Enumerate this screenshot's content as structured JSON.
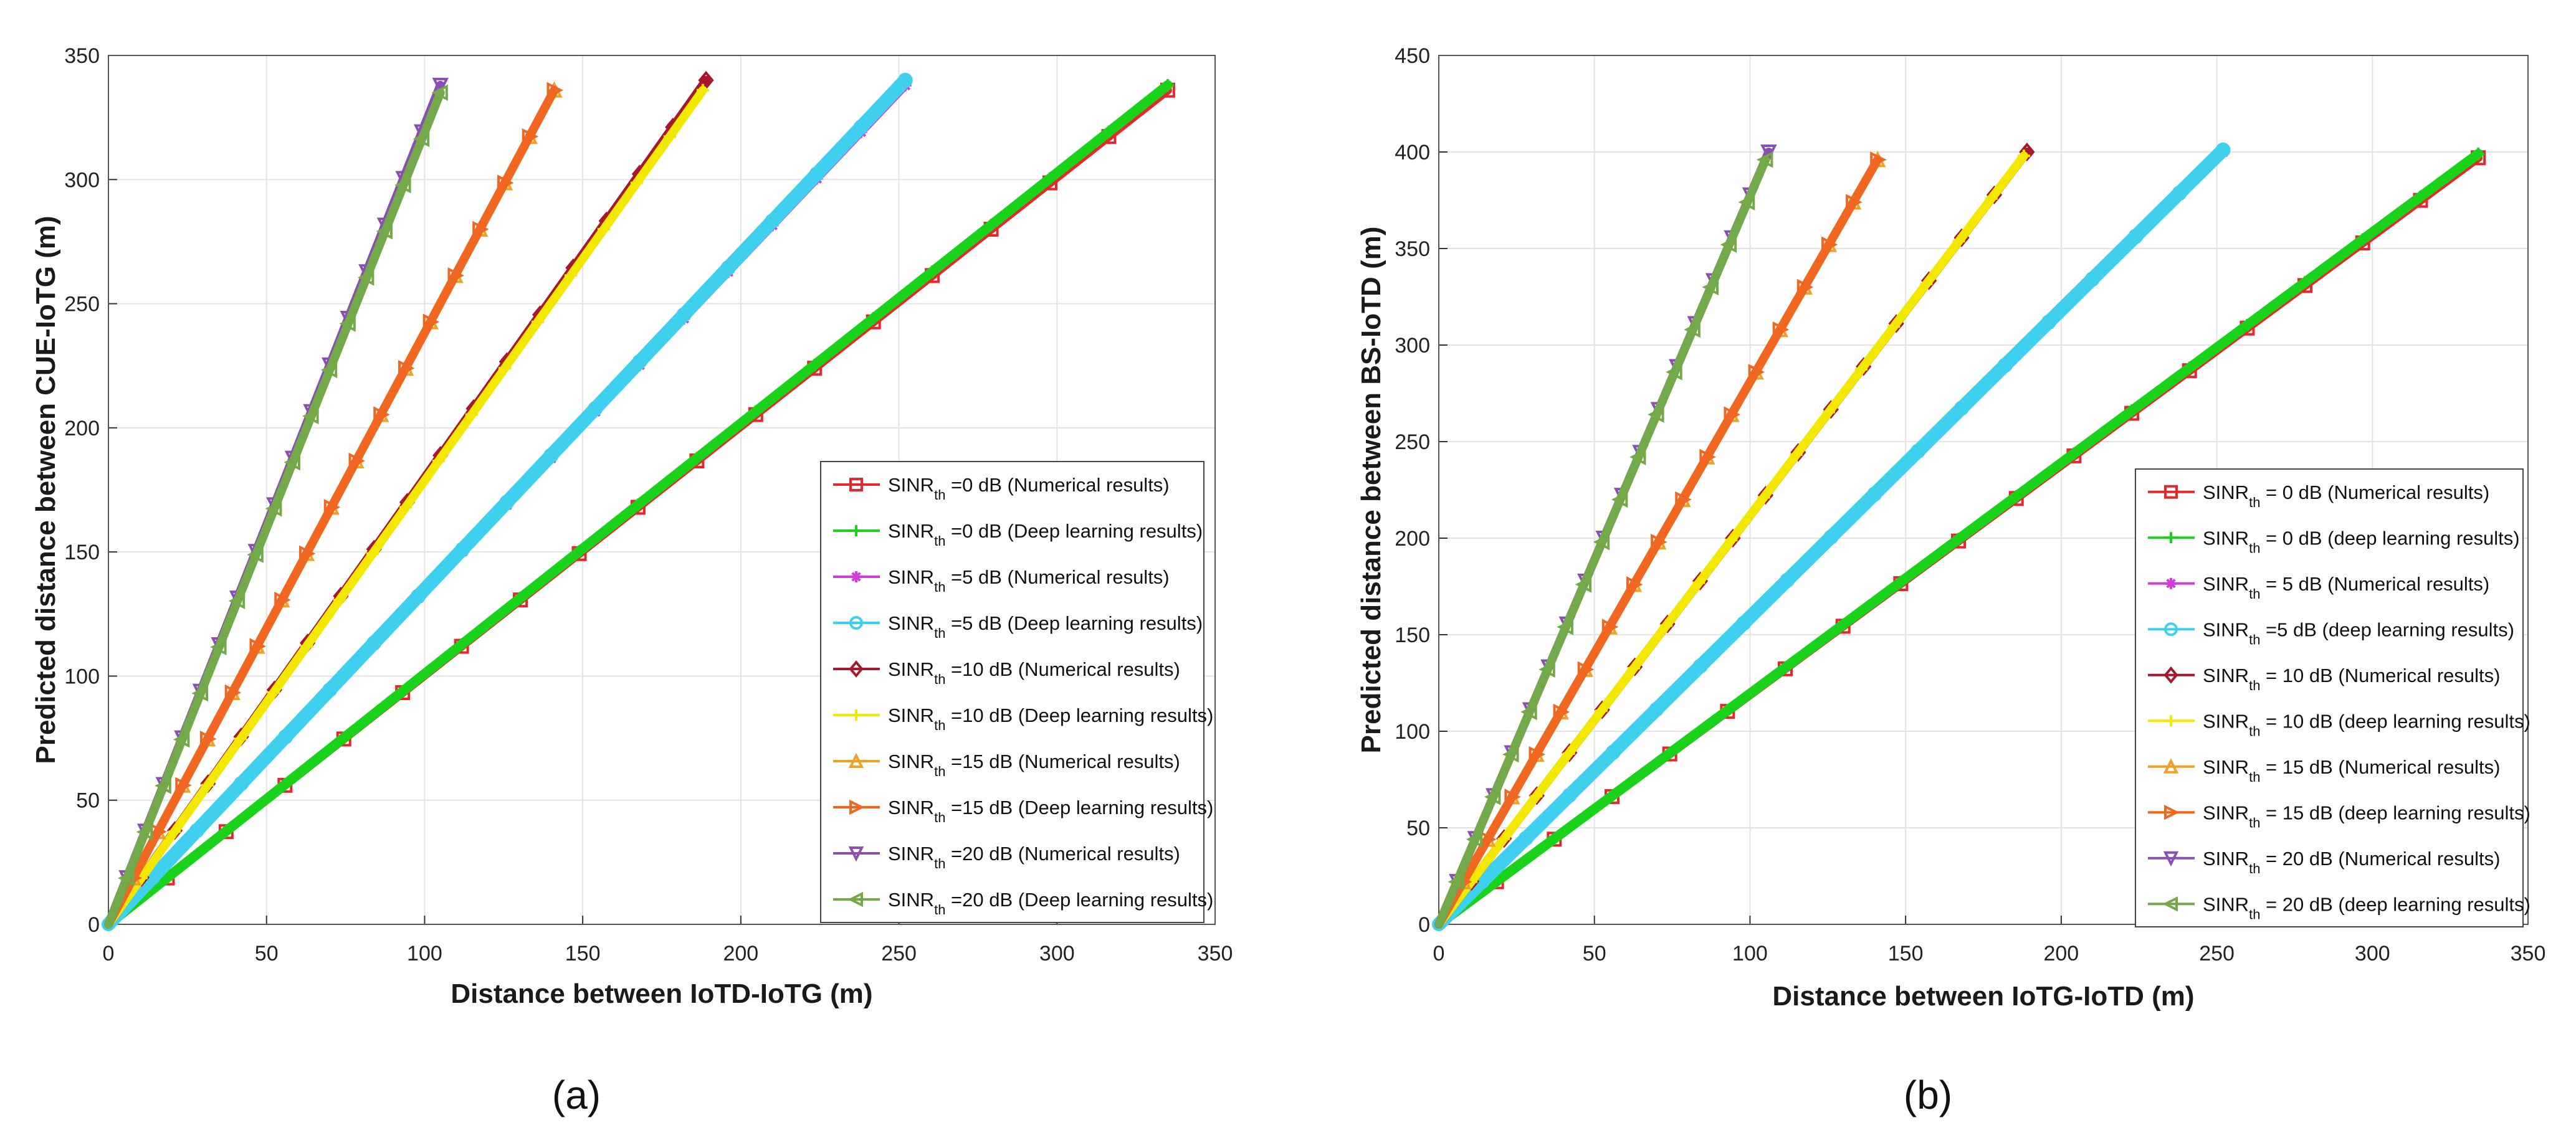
{
  "chart_data": [
    {
      "type": "line",
      "panel_label": "(a)",
      "xlabel": "Distance between IoTD-IoTG (m)",
      "ylabel": "Predicted distance between CUE-IoTG (m)",
      "xlim": [
        0,
        350
      ],
      "ylim": [
        0,
        350
      ],
      "xticks": [
        "0",
        "50",
        "100",
        "150",
        "200",
        "250",
        "300",
        "350"
      ],
      "yticks": [
        "0",
        "50",
        "100",
        "150",
        "200",
        "250",
        "300",
        "350"
      ],
      "grid": true,
      "legend_position": "bottom-right",
      "legend_items": [
        {
          "sub": "SINR",
          "subscript": "th",
          "rest": " =0 dB (Numerical results)"
        },
        {
          "sub": "SINR",
          "subscript": "th",
          "rest": " =0 dB (Deep learning results)"
        },
        {
          "sub": "SINR",
          "subscript": "th",
          "rest": " =5 dB (Numerical results)"
        },
        {
          "sub": "SINR",
          "subscript": "th",
          "rest": " =5 dB (Deep learning results)"
        },
        {
          "sub": "SINR",
          "subscript": "th",
          "rest": " =10 dB (Numerical results)"
        },
        {
          "sub": "SINR",
          "subscript": "th",
          "rest": " =10 dB (Deep learning results)"
        },
        {
          "sub": "SINR",
          "subscript": "th",
          "rest": " =15 dB (Numerical results)"
        },
        {
          "sub": "SINR",
          "subscript": "th",
          "rest": " =15 dB (Deep learning results)"
        },
        {
          "sub": "SINR",
          "subscript": "th",
          "rest": " =20 dB (Numerical results)"
        },
        {
          "sub": "SINR",
          "subscript": "th",
          "rest": " =20 dB (Deep learning results)"
        }
      ],
      "series": [
        {
          "name": "SINRth =0 dB (Numerical results)",
          "color": "#e8262c",
          "marker": "square",
          "x": [
            0,
            335
          ],
          "y": [
            0,
            336
          ]
        },
        {
          "name": "SINRth =0 dB (Deep learning results)",
          "color": "#19d31b",
          "marker": "plus",
          "x": [
            0,
            335
          ],
          "y": [
            0,
            338
          ]
        },
        {
          "name": "SINRth =5 dB (Numerical results)",
          "color": "#d23cd8",
          "marker": "star",
          "x": [
            0,
            252
          ],
          "y": [
            0,
            338
          ]
        },
        {
          "name": "SINRth =5 dB (Deep learning results)",
          "color": "#3fd0ef",
          "marker": "circle",
          "x": [
            0,
            252
          ],
          "y": [
            0,
            340
          ]
        },
        {
          "name": "SINRth =10 dB (Numerical results)",
          "color": "#a8182c",
          "marker": "diamond",
          "x": [
            0,
            189
          ],
          "y": [
            0,
            340
          ]
        },
        {
          "name": "SINRth =10 dB (Deep learning results)",
          "color": "#f2e800",
          "marker": "plus",
          "x": [
            0,
            188
          ],
          "y": [
            0,
            336
          ]
        },
        {
          "name": "SINRth =15 dB (Numerical results)",
          "color": "#f0a226",
          "marker": "triangle-up",
          "x": [
            0,
            141
          ],
          "y": [
            0,
            336
          ]
        },
        {
          "name": "SINRth =15 dB (Deep learning results)",
          "color": "#f06722",
          "marker": "triangle-right",
          "x": [
            0,
            141
          ],
          "y": [
            0,
            336
          ]
        },
        {
          "name": "SINRth =20 dB (Numerical results)",
          "color": "#8a4fb0",
          "marker": "triangle-down",
          "x": [
            0,
            105
          ],
          "y": [
            0,
            338
          ]
        },
        {
          "name": "SINRth =20 dB (Deep learning results)",
          "color": "#74a94a",
          "marker": "triangle-left",
          "x": [
            0,
            105
          ],
          "y": [
            0,
            335
          ]
        }
      ]
    },
    {
      "type": "line",
      "panel_label": "(b)",
      "xlabel": "Distance between IoTG-IoTD (m)",
      "ylabel": "Predicted distance between BS-IoTD (m)",
      "xlim": [
        0,
        350
      ],
      "ylim": [
        0,
        450
      ],
      "xticks": [
        "0",
        "50",
        "100",
        "150",
        "200",
        "250",
        "300",
        "350"
      ],
      "yticks": [
        "0",
        "50",
        "100",
        "150",
        "200",
        "250",
        "300",
        "350",
        "400",
        "450"
      ],
      "grid": true,
      "legend_position": "bottom-right",
      "legend_items": [
        {
          "sub": "SINR",
          "subscript": "th",
          "rest": " = 0 dB (Numerical results)"
        },
        {
          "sub": "SINR",
          "subscript": "th",
          "rest": " = 0 dB (deep learning results)"
        },
        {
          "sub": "SINR",
          "subscript": "th",
          "rest": " = 5 dB (Numerical results)"
        },
        {
          "sub": "SINR",
          "subscript": "th",
          "rest": " =5 dB (deep learning results)"
        },
        {
          "sub": "SINR",
          "subscript": "th",
          "rest": " = 10 dB (Numerical results)"
        },
        {
          "sub": "SINR",
          "subscript": "th",
          "rest": " = 10 dB (deep learning results)"
        },
        {
          "sub": "SINR",
          "subscript": "th",
          "rest": " = 15 dB (Numerical results)"
        },
        {
          "sub": "SINR",
          "subscript": "th",
          "rest": " = 15 dB (deep learning results)"
        },
        {
          "sub": "SINR",
          "subscript": "th",
          "rest": " = 20 dB (Numerical results)"
        },
        {
          "sub": "SINR",
          "subscript": "th",
          "rest": " = 20 dB (deep learning results)"
        }
      ],
      "series": [
        {
          "name": "SINRth = 0 dB (Numerical results)",
          "color": "#e8262c",
          "marker": "square",
          "x": [
            0,
            334
          ],
          "y": [
            0,
            397
          ]
        },
        {
          "name": "SINRth = 0 dB (deep learning results)",
          "color": "#19d31b",
          "marker": "plus",
          "x": [
            0,
            334
          ],
          "y": [
            0,
            399
          ]
        },
        {
          "name": "SINRth = 5 dB (Numerical results)",
          "color": "#d23cd8",
          "marker": "star",
          "x": [
            0,
            252
          ],
          "y": [
            0,
            400
          ]
        },
        {
          "name": "SINRth =5 dB (deep learning results)",
          "color": "#3fd0ef",
          "marker": "circle",
          "x": [
            0,
            252
          ],
          "y": [
            0,
            401
          ]
        },
        {
          "name": "SINRth = 10 dB (Numerical results)",
          "color": "#a8182c",
          "marker": "diamond",
          "x": [
            0,
            189
          ],
          "y": [
            0,
            400
          ]
        },
        {
          "name": "SINRth = 10 dB (deep learning results)",
          "color": "#f2e800",
          "marker": "plus",
          "x": [
            0,
            188
          ],
          "y": [
            0,
            398
          ]
        },
        {
          "name": "SINRth = 15 dB (Numerical results)",
          "color": "#f0a226",
          "marker": "triangle-up",
          "x": [
            0,
            141
          ],
          "y": [
            0,
            396
          ]
        },
        {
          "name": "SINRth = 15 dB (deep learning results)",
          "color": "#f06722",
          "marker": "triangle-right",
          "x": [
            0,
            141
          ],
          "y": [
            0,
            396
          ]
        },
        {
          "name": "SINRth = 20 dB (Numerical results)",
          "color": "#8a4fb0",
          "marker": "triangle-down",
          "x": [
            0,
            106
          ],
          "y": [
            0,
            400
          ]
        },
        {
          "name": "SINRth = 20 dB (deep learning results)",
          "color": "#74a94a",
          "marker": "triangle-left",
          "x": [
            0,
            105
          ],
          "y": [
            0,
            396
          ]
        }
      ]
    }
  ]
}
